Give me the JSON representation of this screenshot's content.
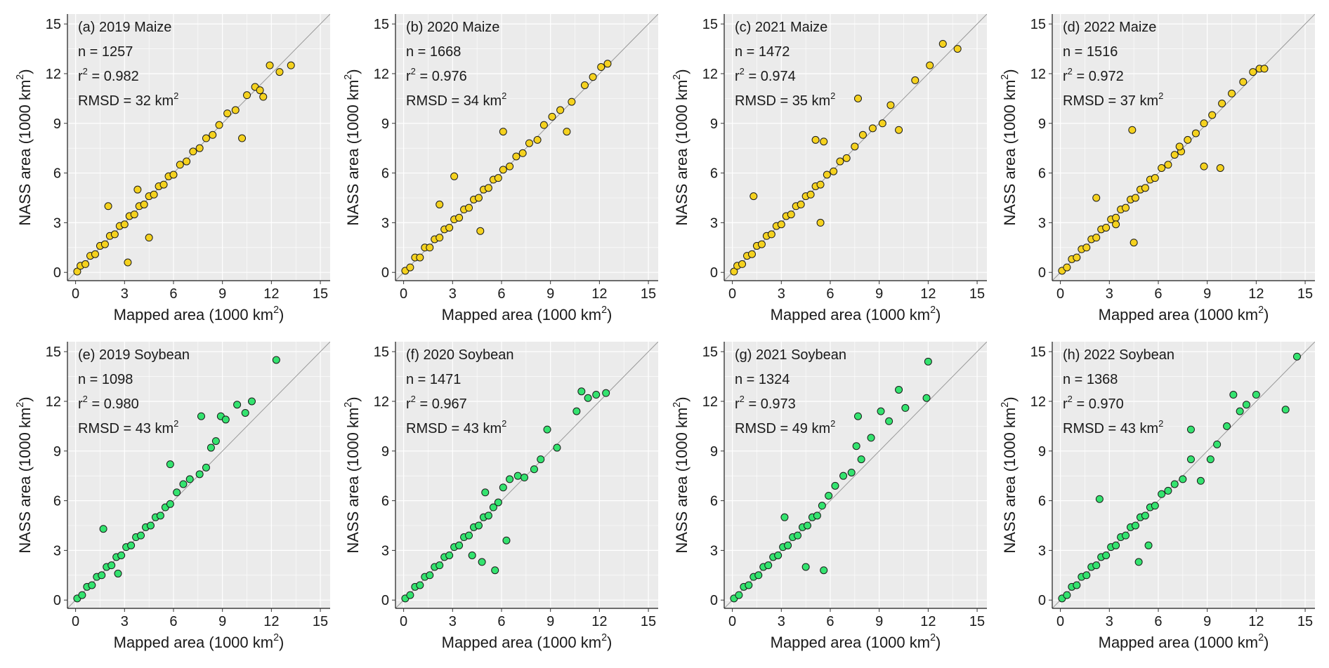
{
  "x_label": "Mapped area (1000 km",
  "y_label": "NASS area (1000 km",
  "unit_superscript": "2",
  "ticks": [
    "0",
    "3",
    "6",
    "9",
    "12",
    "15"
  ],
  "colors": {
    "maize": "#f5d21f",
    "soybean": "#34e36f",
    "panel_bg": "#ebebeb",
    "grid": "#ffffff",
    "point_edge": "#1a1a1a",
    "one_to_one_line": "#999999"
  },
  "chart_data": [
    {
      "type": "scatter",
      "panel": "(a)",
      "year": "2019",
      "crop": "Maize",
      "n": "1257",
      "r2": "0.982",
      "rmsd": "32",
      "xlim": [
        0,
        15
      ],
      "ylim": [
        0,
        15
      ],
      "one_to_one_line": true,
      "points": [
        [
          0.1,
          0.05
        ],
        [
          0.3,
          0.4
        ],
        [
          0.6,
          0.5
        ],
        [
          0.9,
          1.0
        ],
        [
          1.2,
          1.1
        ],
        [
          1.5,
          1.6
        ],
        [
          1.8,
          1.7
        ],
        [
          2.1,
          2.2
        ],
        [
          2.4,
          2.3
        ],
        [
          2.7,
          2.8
        ],
        [
          3.0,
          2.9
        ],
        [
          3.3,
          3.4
        ],
        [
          3.6,
          3.5
        ],
        [
          3.9,
          4.0
        ],
        [
          4.2,
          4.1
        ],
        [
          4.5,
          4.6
        ],
        [
          4.8,
          4.7
        ],
        [
          5.1,
          5.2
        ],
        [
          5.4,
          5.3
        ],
        [
          5.7,
          5.8
        ],
        [
          6.0,
          5.9
        ],
        [
          6.4,
          6.5
        ],
        [
          6.8,
          6.7
        ],
        [
          7.2,
          7.3
        ],
        [
          7.6,
          7.5
        ],
        [
          8.0,
          8.1
        ],
        [
          8.4,
          8.3
        ],
        [
          8.8,
          8.9
        ],
        [
          9.3,
          9.6
        ],
        [
          9.8,
          9.8
        ],
        [
          10.2,
          8.1
        ],
        [
          10.5,
          10.7
        ],
        [
          11.0,
          11.2
        ],
        [
          11.3,
          11.0
        ],
        [
          11.5,
          10.6
        ],
        [
          11.9,
          12.5
        ],
        [
          12.5,
          12.1
        ],
        [
          13.2,
          12.5
        ],
        [
          3.2,
          0.6
        ],
        [
          4.5,
          2.1
        ],
        [
          2.0,
          4.0
        ],
        [
          3.8,
          5.0
        ]
      ]
    },
    {
      "type": "scatter",
      "panel": "(b)",
      "year": "2020",
      "crop": "Maize",
      "n": "1668",
      "r2": "0.976",
      "rmsd": "34",
      "xlim": [
        0,
        15
      ],
      "ylim": [
        0,
        15
      ],
      "one_to_one_line": true,
      "points": [
        [
          0.1,
          0.1
        ],
        [
          0.4,
          0.3
        ],
        [
          0.7,
          0.9
        ],
        [
          1.0,
          0.9
        ],
        [
          1.3,
          1.5
        ],
        [
          1.6,
          1.5
        ],
        [
          1.9,
          2.0
        ],
        [
          2.2,
          2.1
        ],
        [
          2.5,
          2.6
        ],
        [
          2.8,
          2.7
        ],
        [
          3.1,
          3.2
        ],
        [
          3.4,
          3.3
        ],
        [
          3.7,
          3.8
        ],
        [
          4.0,
          3.9
        ],
        [
          4.3,
          4.4
        ],
        [
          4.6,
          4.5
        ],
        [
          4.9,
          5.0
        ],
        [
          5.2,
          5.1
        ],
        [
          5.5,
          5.6
        ],
        [
          5.8,
          5.7
        ],
        [
          6.1,
          6.2
        ],
        [
          6.5,
          6.4
        ],
        [
          6.9,
          7.0
        ],
        [
          7.3,
          7.2
        ],
        [
          7.7,
          7.8
        ],
        [
          8.2,
          8.0
        ],
        [
          8.6,
          8.9
        ],
        [
          9.1,
          9.4
        ],
        [
          9.6,
          9.8
        ],
        [
          10.0,
          8.5
        ],
        [
          10.3,
          10.3
        ],
        [
          11.1,
          11.3
        ],
        [
          11.6,
          11.8
        ],
        [
          12.1,
          12.4
        ],
        [
          12.5,
          12.6
        ],
        [
          2.2,
          4.1
        ],
        [
          4.7,
          2.5
        ],
        [
          3.1,
          5.8
        ],
        [
          6.1,
          8.5
        ]
      ]
    },
    {
      "type": "scatter",
      "panel": "(c)",
      "year": "2021",
      "crop": "Maize",
      "n": "1472",
      "r2": "0.974",
      "rmsd": "35",
      "xlim": [
        0,
        15
      ],
      "ylim": [
        0,
        15
      ],
      "one_to_one_line": true,
      "points": [
        [
          0.1,
          0.05
        ],
        [
          0.3,
          0.4
        ],
        [
          0.6,
          0.5
        ],
        [
          0.9,
          1.0
        ],
        [
          1.2,
          1.1
        ],
        [
          1.5,
          1.6
        ],
        [
          1.8,
          1.7
        ],
        [
          2.1,
          2.2
        ],
        [
          2.4,
          2.3
        ],
        [
          2.7,
          2.8
        ],
        [
          3.0,
          2.9
        ],
        [
          3.3,
          3.4
        ],
        [
          3.6,
          3.5
        ],
        [
          3.9,
          4.0
        ],
        [
          4.2,
          4.1
        ],
        [
          4.5,
          4.6
        ],
        [
          4.8,
          4.7
        ],
        [
          5.1,
          5.2
        ],
        [
          5.4,
          5.3
        ],
        [
          5.8,
          5.9
        ],
        [
          6.2,
          6.1
        ],
        [
          6.6,
          6.7
        ],
        [
          7.0,
          6.9
        ],
        [
          7.5,
          7.6
        ],
        [
          8.0,
          8.3
        ],
        [
          8.6,
          8.7
        ],
        [
          9.2,
          9.0
        ],
        [
          9.7,
          10.1
        ],
        [
          10.2,
          8.6
        ],
        [
          11.2,
          11.6
        ],
        [
          12.1,
          12.5
        ],
        [
          12.9,
          13.8
        ],
        [
          13.8,
          13.5
        ],
        [
          1.3,
          4.6
        ],
        [
          5.1,
          8.0
        ],
        [
          5.6,
          7.9
        ],
        [
          5.4,
          3.0
        ],
        [
          7.7,
          10.5
        ]
      ]
    },
    {
      "type": "scatter",
      "panel": "(d)",
      "year": "2022",
      "crop": "Maize",
      "n": "1516",
      "r2": "0.972",
      "rmsd": "37",
      "xlim": [
        0,
        15
      ],
      "ylim": [
        0,
        15
      ],
      "one_to_one_line": true,
      "points": [
        [
          0.1,
          0.1
        ],
        [
          0.4,
          0.3
        ],
        [
          0.7,
          0.8
        ],
        [
          1.0,
          0.9
        ],
        [
          1.3,
          1.4
        ],
        [
          1.6,
          1.5
        ],
        [
          1.9,
          2.0
        ],
        [
          2.2,
          2.1
        ],
        [
          2.5,
          2.6
        ],
        [
          2.8,
          2.7
        ],
        [
          3.1,
          3.2
        ],
        [
          3.4,
          3.3
        ],
        [
          3.7,
          3.8
        ],
        [
          4.0,
          3.9
        ],
        [
          4.3,
          4.4
        ],
        [
          4.6,
          4.5
        ],
        [
          4.9,
          5.0
        ],
        [
          5.2,
          5.1
        ],
        [
          5.5,
          5.6
        ],
        [
          5.8,
          5.7
        ],
        [
          6.2,
          6.3
        ],
        [
          6.6,
          6.5
        ],
        [
          7.0,
          7.1
        ],
        [
          7.4,
          7.3
        ],
        [
          7.8,
          8.0
        ],
        [
          8.3,
          8.4
        ],
        [
          8.8,
          9.0
        ],
        [
          9.3,
          9.5
        ],
        [
          9.9,
          10.2
        ],
        [
          10.5,
          10.8
        ],
        [
          11.2,
          11.5
        ],
        [
          11.8,
          12.1
        ],
        [
          12.2,
          12.3
        ],
        [
          12.5,
          12.3
        ],
        [
          4.4,
          8.6
        ],
        [
          8.8,
          6.4
        ],
        [
          9.8,
          6.3
        ],
        [
          4.5,
          1.8
        ],
        [
          2.2,
          4.5
        ],
        [
          3.4,
          2.9
        ],
        [
          7.3,
          7.6
        ]
      ]
    },
    {
      "type": "scatter",
      "panel": "(e)",
      "year": "2019",
      "crop": "Soybean",
      "n": "1098",
      "r2": "0.980",
      "rmsd": "43",
      "xlim": [
        0,
        15
      ],
      "ylim": [
        0,
        15
      ],
      "one_to_one_line": true,
      "points": [
        [
          0.1,
          0.1
        ],
        [
          0.4,
          0.3
        ],
        [
          0.7,
          0.8
        ],
        [
          1.0,
          0.9
        ],
        [
          1.3,
          1.4
        ],
        [
          1.6,
          1.5
        ],
        [
          1.9,
          2.0
        ],
        [
          2.2,
          2.1
        ],
        [
          2.5,
          2.6
        ],
        [
          2.8,
          2.7
        ],
        [
          3.1,
          3.2
        ],
        [
          3.4,
          3.3
        ],
        [
          3.7,
          3.8
        ],
        [
          4.0,
          3.9
        ],
        [
          4.3,
          4.4
        ],
        [
          4.6,
          4.5
        ],
        [
          4.9,
          5.0
        ],
        [
          5.2,
          5.1
        ],
        [
          5.5,
          5.6
        ],
        [
          5.8,
          5.8
        ],
        [
          6.2,
          6.5
        ],
        [
          6.6,
          7.0
        ],
        [
          7.0,
          7.3
        ],
        [
          7.6,
          7.6
        ],
        [
          8.0,
          8.0
        ],
        [
          8.3,
          9.2
        ],
        [
          8.6,
          9.6
        ],
        [
          8.9,
          11.1
        ],
        [
          9.2,
          10.9
        ],
        [
          9.9,
          11.8
        ],
        [
          10.4,
          11.3
        ],
        [
          10.8,
          12.0
        ],
        [
          12.3,
          14.5
        ],
        [
          1.7,
          4.3
        ],
        [
          5.8,
          8.2
        ],
        [
          7.7,
          11.1
        ],
        [
          2.6,
          1.6
        ]
      ]
    },
    {
      "type": "scatter",
      "panel": "(f)",
      "year": "2020",
      "crop": "Soybean",
      "n": "1471",
      "r2": "0.967",
      "rmsd": "43",
      "xlim": [
        0,
        15
      ],
      "ylim": [
        0,
        15
      ],
      "one_to_one_line": true,
      "points": [
        [
          0.1,
          0.1
        ],
        [
          0.4,
          0.3
        ],
        [
          0.7,
          0.8
        ],
        [
          1.0,
          0.9
        ],
        [
          1.3,
          1.4
        ],
        [
          1.6,
          1.5
        ],
        [
          1.9,
          2.0
        ],
        [
          2.2,
          2.1
        ],
        [
          2.5,
          2.6
        ],
        [
          2.8,
          2.7
        ],
        [
          3.1,
          3.2
        ],
        [
          3.4,
          3.3
        ],
        [
          3.7,
          3.8
        ],
        [
          4.0,
          3.9
        ],
        [
          4.3,
          4.4
        ],
        [
          4.6,
          4.5
        ],
        [
          4.9,
          5.0
        ],
        [
          5.2,
          5.1
        ],
        [
          5.5,
          5.6
        ],
        [
          5.8,
          5.9
        ],
        [
          6.1,
          6.8
        ],
        [
          6.5,
          7.3
        ],
        [
          7.0,
          7.5
        ],
        [
          7.4,
          7.4
        ],
        [
          8.0,
          7.9
        ],
        [
          8.4,
          8.5
        ],
        [
          8.8,
          10.3
        ],
        [
          9.4,
          9.2
        ],
        [
          10.6,
          11.4
        ],
        [
          10.9,
          12.6
        ],
        [
          11.3,
          12.2
        ],
        [
          11.8,
          12.4
        ],
        [
          12.4,
          12.5
        ],
        [
          4.2,
          2.7
        ],
        [
          4.8,
          2.3
        ],
        [
          5.6,
          1.8
        ],
        [
          6.3,
          3.6
        ],
        [
          5.0,
          6.5
        ]
      ]
    },
    {
      "type": "scatter",
      "panel": "(g)",
      "year": "2021",
      "crop": "Soybean",
      "n": "1324",
      "r2": "0.973",
      "rmsd": "49",
      "xlim": [
        0,
        15
      ],
      "ylim": [
        0,
        15
      ],
      "one_to_one_line": true,
      "points": [
        [
          0.1,
          0.1
        ],
        [
          0.4,
          0.3
        ],
        [
          0.7,
          0.8
        ],
        [
          1.0,
          0.9
        ],
        [
          1.3,
          1.4
        ],
        [
          1.6,
          1.5
        ],
        [
          1.9,
          2.0
        ],
        [
          2.2,
          2.1
        ],
        [
          2.5,
          2.6
        ],
        [
          2.8,
          2.7
        ],
        [
          3.1,
          3.2
        ],
        [
          3.4,
          3.3
        ],
        [
          3.7,
          3.8
        ],
        [
          4.0,
          3.9
        ],
        [
          4.3,
          4.4
        ],
        [
          4.6,
          4.5
        ],
        [
          4.9,
          5.0
        ],
        [
          5.2,
          5.1
        ],
        [
          5.5,
          5.7
        ],
        [
          5.9,
          6.3
        ],
        [
          6.3,
          6.9
        ],
        [
          6.8,
          7.5
        ],
        [
          7.3,
          7.7
        ],
        [
          7.6,
          9.3
        ],
        [
          7.9,
          8.5
        ],
        [
          8.5,
          9.8
        ],
        [
          9.1,
          11.4
        ],
        [
          9.6,
          10.8
        ],
        [
          10.2,
          12.7
        ],
        [
          10.6,
          11.6
        ],
        [
          11.9,
          12.2
        ],
        [
          12.0,
          14.4
        ],
        [
          5.6,
          1.8
        ],
        [
          4.5,
          2.0
        ],
        [
          7.7,
          11.1
        ],
        [
          3.2,
          5.0
        ]
      ]
    },
    {
      "type": "scatter",
      "panel": "(h)",
      "year": "2022",
      "crop": "Soybean",
      "n": "1368",
      "r2": "0.970",
      "rmsd": "43",
      "xlim": [
        0,
        15
      ],
      "ylim": [
        0,
        15
      ],
      "one_to_one_line": true,
      "points": [
        [
          0.1,
          0.1
        ],
        [
          0.4,
          0.3
        ],
        [
          0.7,
          0.8
        ],
        [
          1.0,
          0.9
        ],
        [
          1.3,
          1.4
        ],
        [
          1.6,
          1.5
        ],
        [
          1.9,
          2.0
        ],
        [
          2.2,
          2.1
        ],
        [
          2.5,
          2.6
        ],
        [
          2.8,
          2.7
        ],
        [
          3.1,
          3.2
        ],
        [
          3.4,
          3.3
        ],
        [
          3.7,
          3.8
        ],
        [
          4.0,
          3.9
        ],
        [
          4.3,
          4.4
        ],
        [
          4.6,
          4.5
        ],
        [
          4.9,
          5.0
        ],
        [
          5.2,
          5.1
        ],
        [
          5.5,
          5.6
        ],
        [
          5.8,
          5.7
        ],
        [
          6.2,
          6.4
        ],
        [
          6.6,
          6.6
        ],
        [
          7.0,
          7.0
        ],
        [
          7.5,
          7.3
        ],
        [
          8.0,
          8.5
        ],
        [
          8.6,
          7.2
        ],
        [
          9.2,
          8.5
        ],
        [
          9.6,
          9.4
        ],
        [
          10.2,
          10.5
        ],
        [
          10.6,
          12.4
        ],
        [
          11.0,
          11.4
        ],
        [
          11.4,
          11.8
        ],
        [
          12.0,
          12.4
        ],
        [
          13.8,
          11.5
        ],
        [
          14.5,
          14.7
        ],
        [
          2.4,
          6.1
        ],
        [
          4.8,
          2.3
        ],
        [
          8.0,
          10.3
        ],
        [
          5.4,
          3.3
        ]
      ]
    }
  ]
}
